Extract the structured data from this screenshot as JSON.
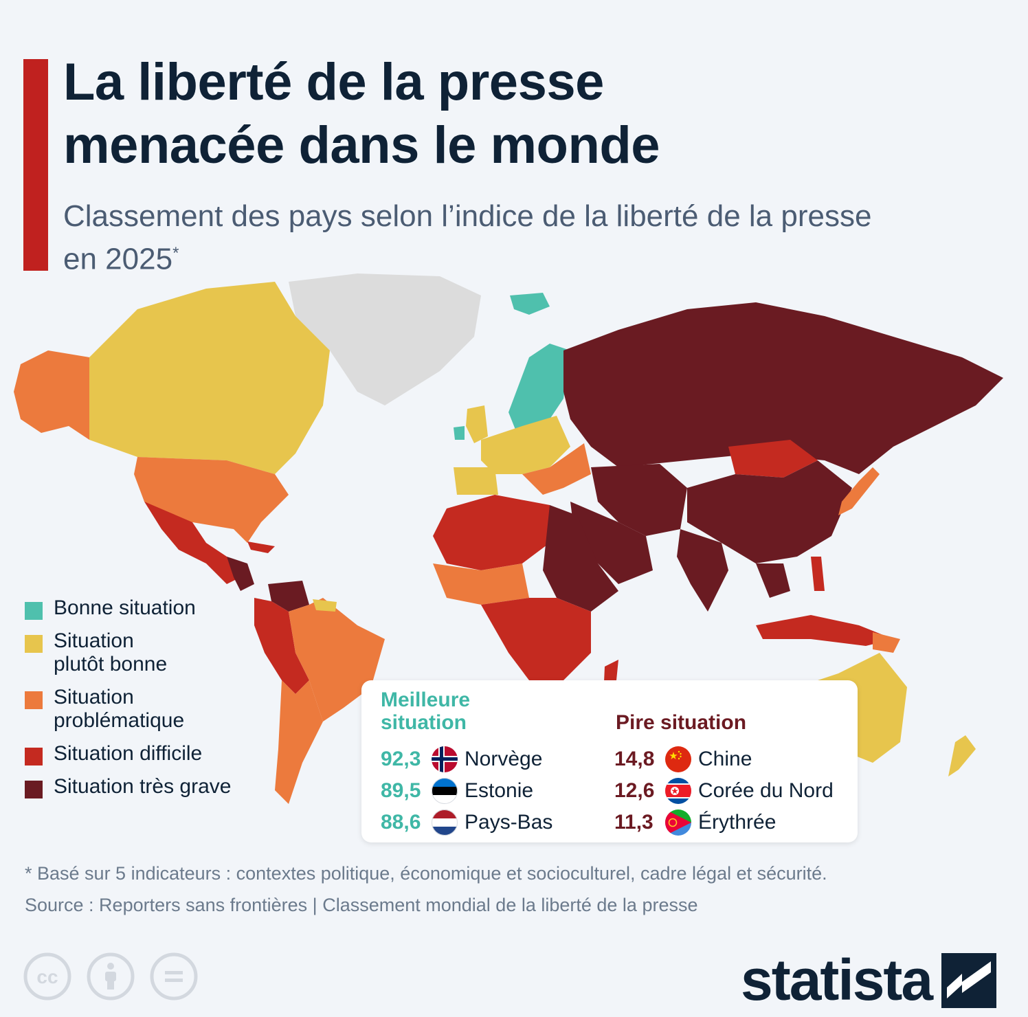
{
  "header": {
    "title_line1": "La liberté de la presse",
    "title_line2": "menacée dans le monde",
    "subtitle_line1": "Classement des pays selon l’indice de la liberté de la presse",
    "subtitle_line2": "en 2025",
    "subtitle_mark": "*"
  },
  "colors": {
    "accent": "#c0211f",
    "bonne": "#4fc0ad",
    "plutot_bonne": "#e7c54d",
    "problematique": "#ec7a3d",
    "difficile": "#c42a20",
    "tres_grave": "#6a1b22",
    "no_data": "#dcdcdc"
  },
  "legend": {
    "items": [
      {
        "label": "Bonne situation",
        "color": "#4fc0ad"
      },
      {
        "label": "Situation plutôt bonne",
        "color": "#e7c54d"
      },
      {
        "label": "Situation problématique",
        "color": "#ec7a3d"
      },
      {
        "label": "Situation difficile",
        "color": "#c42a20"
      },
      {
        "label": "Situation très grave",
        "color": "#6a1b22"
      }
    ]
  },
  "ranking": {
    "best_title": "Meilleure situation",
    "worst_title": "Pire situation",
    "best": [
      {
        "score": "92,3",
        "country": "Norvège",
        "flag": "norway-flag-icon"
      },
      {
        "score": "89,5",
        "country": "Estonie",
        "flag": "estonia-flag-icon"
      },
      {
        "score": "88,6",
        "country": "Pays-Bas",
        "flag": "netherlands-flag-icon"
      }
    ],
    "worst": [
      {
        "score": "14,8",
        "country": "Chine",
        "flag": "china-flag-icon"
      },
      {
        "score": "12,6",
        "country": "Corée du Nord",
        "flag": "north-korea-flag-icon"
      },
      {
        "score": "11,3",
        "country": "Érythrée",
        "flag": "eritrea-flag-icon"
      }
    ]
  },
  "footer": {
    "footnote": "* Basé sur 5 indicateurs : contextes politique, économique et socioculturel, cadre légal et sécurité.",
    "source": "Source : Reporters sans frontières | Classement mondial de la liberté de la presse",
    "brand": "statista"
  }
}
